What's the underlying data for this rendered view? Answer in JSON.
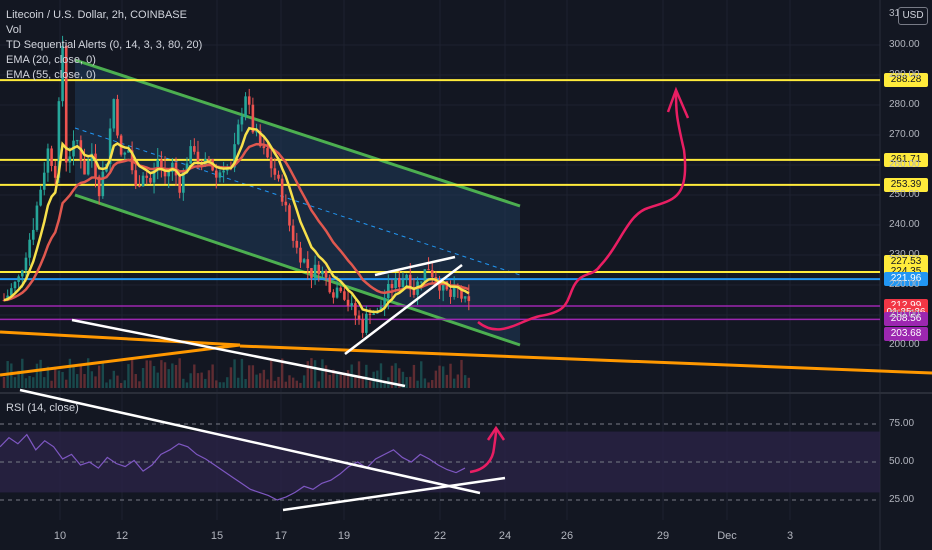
{
  "header": {
    "title": "Litecoin / U.S. Dollar, 2h, COINBASE",
    "indicators": [
      "Vol",
      "TD Sequential Alerts (0, 14, 3, 3, 80, 20)",
      "EMA (20, close, 0)",
      "EMA (55, close, 0)"
    ],
    "rsi_label": "RSI (14, close)",
    "currency": "USD",
    "top_clipped_tick": "31"
  },
  "price_badges": [
    {
      "label": "288.28",
      "bg": "#ffeb3b",
      "fg": "#131722",
      "value": 288.28
    },
    {
      "label": "261.71",
      "bg": "#ffeb3b",
      "fg": "#131722",
      "value": 261.71
    },
    {
      "label": "253.39",
      "bg": "#ffeb3b",
      "fg": "#131722",
      "value": 253.39
    },
    {
      "label": "227.53",
      "bg": "#ffeb3b",
      "fg": "#131722",
      "value": 227.53
    },
    {
      "label": "224.35",
      "bg": "#ffeb3b",
      "fg": "#131722",
      "value": 224.35
    },
    {
      "label": "221.96",
      "bg": "#2196f3",
      "fg": "#ffffff",
      "value": 221.96
    },
    {
      "label": "212.99",
      "bg": "#f23645",
      "fg": "#ffffff",
      "value": 212.99
    },
    {
      "label": "01:25:26",
      "bg": "#f23645",
      "fg": "#ffffff",
      "value": 210.6
    },
    {
      "label": "208.56",
      "bg": "#9c27b0",
      "fg": "#ffffff",
      "value": 208.56
    },
    {
      "label": "203.68",
      "bg": "#9c27b0",
      "fg": "#ffffff",
      "value": 203.68
    }
  ],
  "colors": {
    "background": "#131722",
    "up": "#26a69a",
    "down": "#ef5350",
    "ema20": "#f7e04b",
    "ema55": "#e0584f",
    "channel_border": "#4caf50",
    "channel_fill": "#1f3a5a",
    "support": "#ffeb3b",
    "current": "#2196f3",
    "purple": "#9c27b0",
    "orange": "#ff9800",
    "trend_white": "#ffffff",
    "projection": "#e91e63",
    "rsi_line": "#7e57c2",
    "rsi_band": "#2a2346"
  },
  "chart_data": {
    "type": "candlestick",
    "symbol": "LTCUSD",
    "interval": "2h",
    "x_ticks": [
      "10",
      "12",
      "15",
      "17",
      "19",
      "22",
      "24",
      "26",
      "29",
      "Dec",
      "3"
    ],
    "y_ticks": [
      300,
      290,
      280,
      270,
      260,
      250,
      240,
      230,
      220,
      210,
      200
    ],
    "y_tick_labels": [
      "300.00",
      "290.00",
      "280.00",
      "270.00",
      "260.00",
      "250.00",
      "240.00",
      "230.00",
      "220.00",
      "210.00",
      "200.00"
    ],
    "ylim": [
      194,
      312
    ],
    "horizontal_levels": [
      {
        "value": 288.28,
        "color": "#ffeb3b"
      },
      {
        "value": 261.71,
        "color": "#ffeb3b"
      },
      {
        "value": 253.39,
        "color": "#ffeb3b"
      },
      {
        "value": 224.35,
        "color": "#ffeb3b"
      },
      {
        "value": 221.96,
        "color": "#2196f3"
      },
      {
        "value": 212.99,
        "color": "#9c27b0"
      },
      {
        "value": 208.56,
        "color": "#9c27b0"
      }
    ],
    "price_path": [
      [
        0,
        215
      ],
      [
        4,
        222
      ],
      [
        8,
        240
      ],
      [
        12,
        265
      ],
      [
        14,
        258
      ],
      [
        16,
        300
      ],
      [
        17,
        262
      ],
      [
        20,
        268
      ],
      [
        22,
        258
      ],
      [
        24,
        264
      ],
      [
        26,
        252
      ],
      [
        28,
        262
      ],
      [
        30,
        282
      ],
      [
        32,
        262
      ],
      [
        34,
        265
      ],
      [
        36,
        252
      ],
      [
        38,
        258
      ],
      [
        40,
        254
      ],
      [
        42,
        262
      ],
      [
        44,
        256
      ],
      [
        46,
        260
      ],
      [
        48,
        253
      ],
      [
        50,
        262
      ],
      [
        52,
        266
      ],
      [
        54,
        258
      ],
      [
        56,
        262
      ],
      [
        58,
        256
      ],
      [
        60,
        260
      ],
      [
        62,
        258
      ],
      [
        64,
        272
      ],
      [
        66,
        284
      ],
      [
        68,
        272
      ],
      [
        70,
        266
      ],
      [
        72,
        262
      ],
      [
        74,
        257
      ],
      [
        76,
        250
      ],
      [
        78,
        240
      ],
      [
        80,
        232
      ],
      [
        82,
        228
      ],
      [
        84,
        224
      ],
      [
        86,
        226
      ],
      [
        88,
        222
      ],
      [
        90,
        218
      ],
      [
        92,
        220
      ],
      [
        94,
        214
      ],
      [
        96,
        210
      ],
      [
        98,
        206
      ],
      [
        100,
        212
      ],
      [
        102,
        210
      ],
      [
        104,
        216
      ],
      [
        106,
        220
      ],
      [
        108,
        221
      ],
      [
        110,
        224
      ],
      [
        112,
        218
      ],
      [
        114,
        223
      ],
      [
        116,
        226
      ],
      [
        118,
        222
      ],
      [
        120,
        219
      ],
      [
        122,
        216
      ],
      [
        124,
        218
      ],
      [
        126,
        214
      ],
      [
        127,
        213
      ]
    ],
    "rsi_ticks": [
      75,
      50,
      25
    ],
    "rsi_tick_labels": [
      "75.00",
      "50.00",
      "25.00"
    ],
    "rsi_band": [
      30,
      70
    ],
    "rsi_values": [
      60,
      66,
      62,
      68,
      58,
      64,
      60,
      52,
      55,
      48,
      50,
      46,
      53,
      49,
      47,
      51,
      44,
      48,
      55,
      58,
      62,
      60,
      55,
      52,
      48,
      44,
      40,
      36,
      32,
      30,
      28,
      25,
      27,
      30,
      34,
      32,
      36,
      38,
      42,
      47,
      50,
      46,
      52,
      55,
      58,
      53,
      50,
      55,
      52,
      48,
      45,
      43,
      46
    ]
  }
}
